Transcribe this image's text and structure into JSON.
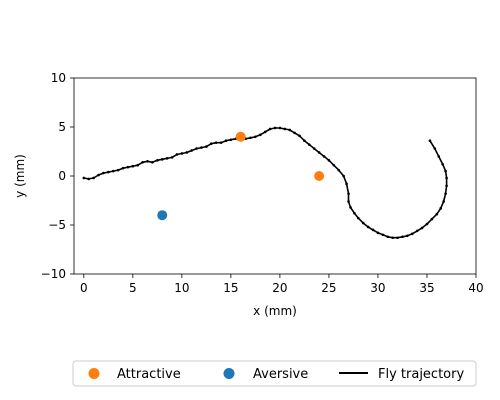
{
  "chart_data": {
    "type": "scatter",
    "title": "",
    "xlabel": "x (mm)",
    "ylabel": "y (mm)",
    "xlim": [
      -1,
      40
    ],
    "ylim": [
      -10,
      10
    ],
    "xticks": [
      0,
      5,
      10,
      15,
      20,
      25,
      30,
      35,
      40
    ],
    "yticks": [
      -10,
      -5,
      0,
      5,
      10
    ],
    "grid": false,
    "legend_position": "bottom",
    "series": [
      {
        "name": "Attractive",
        "kind": "scatter",
        "color": "#ff7f0e",
        "points": [
          [
            16,
            4
          ],
          [
            24,
            0
          ]
        ]
      },
      {
        "name": "Aversive",
        "kind": "scatter",
        "color": "#1f77b4",
        "points": [
          [
            8,
            -4
          ]
        ]
      },
      {
        "name": "Fly trajectory",
        "kind": "line",
        "color": "#000000",
        "points": [
          [
            0,
            -0.2
          ],
          [
            0.5,
            -0.3
          ],
          [
            1,
            -0.2
          ],
          [
            1.5,
            0.1
          ],
          [
            2,
            0.3
          ],
          [
            2.5,
            0.4
          ],
          [
            3,
            0.5
          ],
          [
            3.5,
            0.6
          ],
          [
            4,
            0.8
          ],
          [
            4.5,
            0.9
          ],
          [
            5,
            1.0
          ],
          [
            5.5,
            1.1
          ],
          [
            6,
            1.4
          ],
          [
            6.5,
            1.5
          ],
          [
            7,
            1.4
          ],
          [
            7.5,
            1.6
          ],
          [
            8,
            1.7
          ],
          [
            8.5,
            1.8
          ],
          [
            9,
            1.9
          ],
          [
            9.5,
            2.2
          ],
          [
            10,
            2.3
          ],
          [
            10.5,
            2.4
          ],
          [
            11,
            2.6
          ],
          [
            11.5,
            2.8
          ],
          [
            12,
            2.9
          ],
          [
            12.5,
            3.0
          ],
          [
            13,
            3.3
          ],
          [
            13.5,
            3.4
          ],
          [
            14,
            3.4
          ],
          [
            14.5,
            3.6
          ],
          [
            15,
            3.7
          ],
          [
            15.5,
            3.8
          ],
          [
            16,
            3.9
          ],
          [
            16.5,
            3.8
          ],
          [
            17,
            3.9
          ],
          [
            17.5,
            4.0
          ],
          [
            18,
            4.2
          ],
          [
            18.5,
            4.5
          ],
          [
            19,
            4.8
          ],
          [
            19.5,
            4.9
          ],
          [
            20,
            4.9
          ],
          [
            20.5,
            4.8
          ],
          [
            21,
            4.7
          ],
          [
            21.5,
            4.4
          ],
          [
            22,
            4.1
          ],
          [
            22.5,
            3.6
          ],
          [
            23,
            3.2
          ],
          [
            23.5,
            2.8
          ],
          [
            24,
            2.4
          ],
          [
            24.5,
            2.0
          ],
          [
            25,
            1.6
          ],
          [
            25.5,
            1.1
          ],
          [
            26,
            0.6
          ],
          [
            26.5,
            0.0
          ],
          [
            26.8,
            -0.8
          ],
          [
            27,
            -1.8
          ],
          [
            27,
            -2.6
          ],
          [
            27.2,
            -3.2
          ],
          [
            27.6,
            -3.8
          ],
          [
            28,
            -4.3
          ],
          [
            28.5,
            -4.8
          ],
          [
            29,
            -5.2
          ],
          [
            29.5,
            -5.5
          ],
          [
            30,
            -5.8
          ],
          [
            30.5,
            -6.0
          ],
          [
            31,
            -6.2
          ],
          [
            31.5,
            -6.3
          ],
          [
            32,
            -6.3
          ],
          [
            32.5,
            -6.2
          ],
          [
            33,
            -6.1
          ],
          [
            33.5,
            -5.9
          ],
          [
            34,
            -5.6
          ],
          [
            34.5,
            -5.3
          ],
          [
            35,
            -4.9
          ],
          [
            35.5,
            -4.4
          ],
          [
            36,
            -3.9
          ],
          [
            36.4,
            -3.3
          ],
          [
            36.7,
            -2.6
          ],
          [
            36.9,
            -1.8
          ],
          [
            37,
            -1.0
          ],
          [
            37,
            -0.2
          ],
          [
            36.9,
            0.5
          ],
          [
            36.6,
            1.2
          ],
          [
            36.2,
            2.0
          ],
          [
            35.8,
            2.8
          ],
          [
            35.3,
            3.6
          ]
        ]
      }
    ]
  }
}
